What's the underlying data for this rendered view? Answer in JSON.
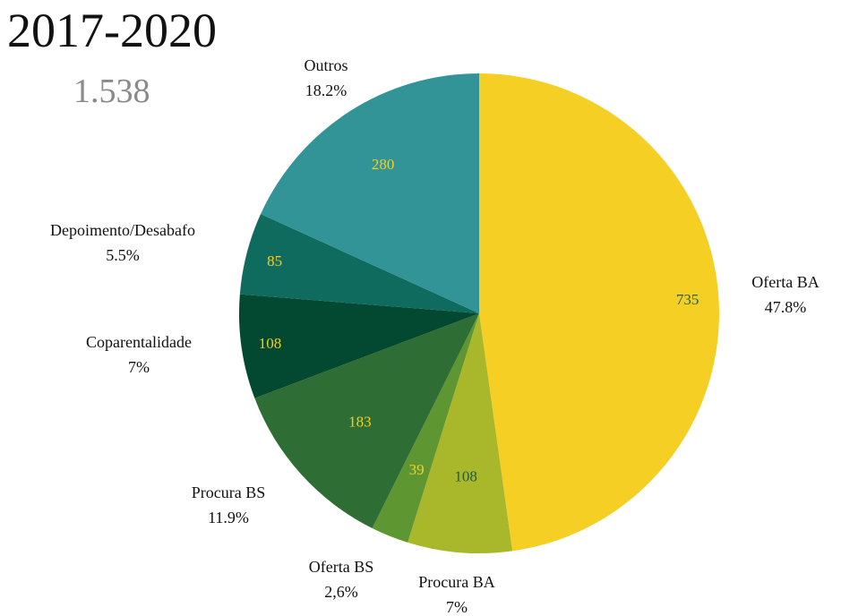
{
  "header": {
    "title": "2017-2020",
    "total": "1.538"
  },
  "chart_data": {
    "type": "pie",
    "title": "2017-2020",
    "subtitle": "1.538",
    "start_angle_deg": 0,
    "direction": "clockwise",
    "slices": [
      {
        "name": "Oferta BA",
        "value": 735,
        "percent_label": "47.8%",
        "color": "#F5CF24",
        "value_color": "#1F5C3A"
      },
      {
        "name": "Procura BA",
        "value": 108,
        "percent_label": "7%",
        "color": "#A9B82A",
        "value_color": "#1F5C3A"
      },
      {
        "name": "Oferta BS",
        "value": 39,
        "percent_label": "2,6%",
        "color": "#5E9632",
        "value_color": "#F5CF24"
      },
      {
        "name": "Procura BS",
        "value": 183,
        "percent_label": "11.9%",
        "color": "#2E6E35",
        "value_color": "#F5CF24"
      },
      {
        "name": "Coparentalidade",
        "value": 108,
        "percent_label": "7%",
        "color": "#034831",
        "value_color": "#F5CF24"
      },
      {
        "name": "Depoimento/Desabafo",
        "value": 85,
        "percent_label": "5.5%",
        "color": "#0E6B5E",
        "value_color": "#F5CF24"
      },
      {
        "name": "Outros",
        "value": 280,
        "percent_label": "18.2%",
        "color": "#329497",
        "value_color": "#F5CF24"
      }
    ]
  }
}
